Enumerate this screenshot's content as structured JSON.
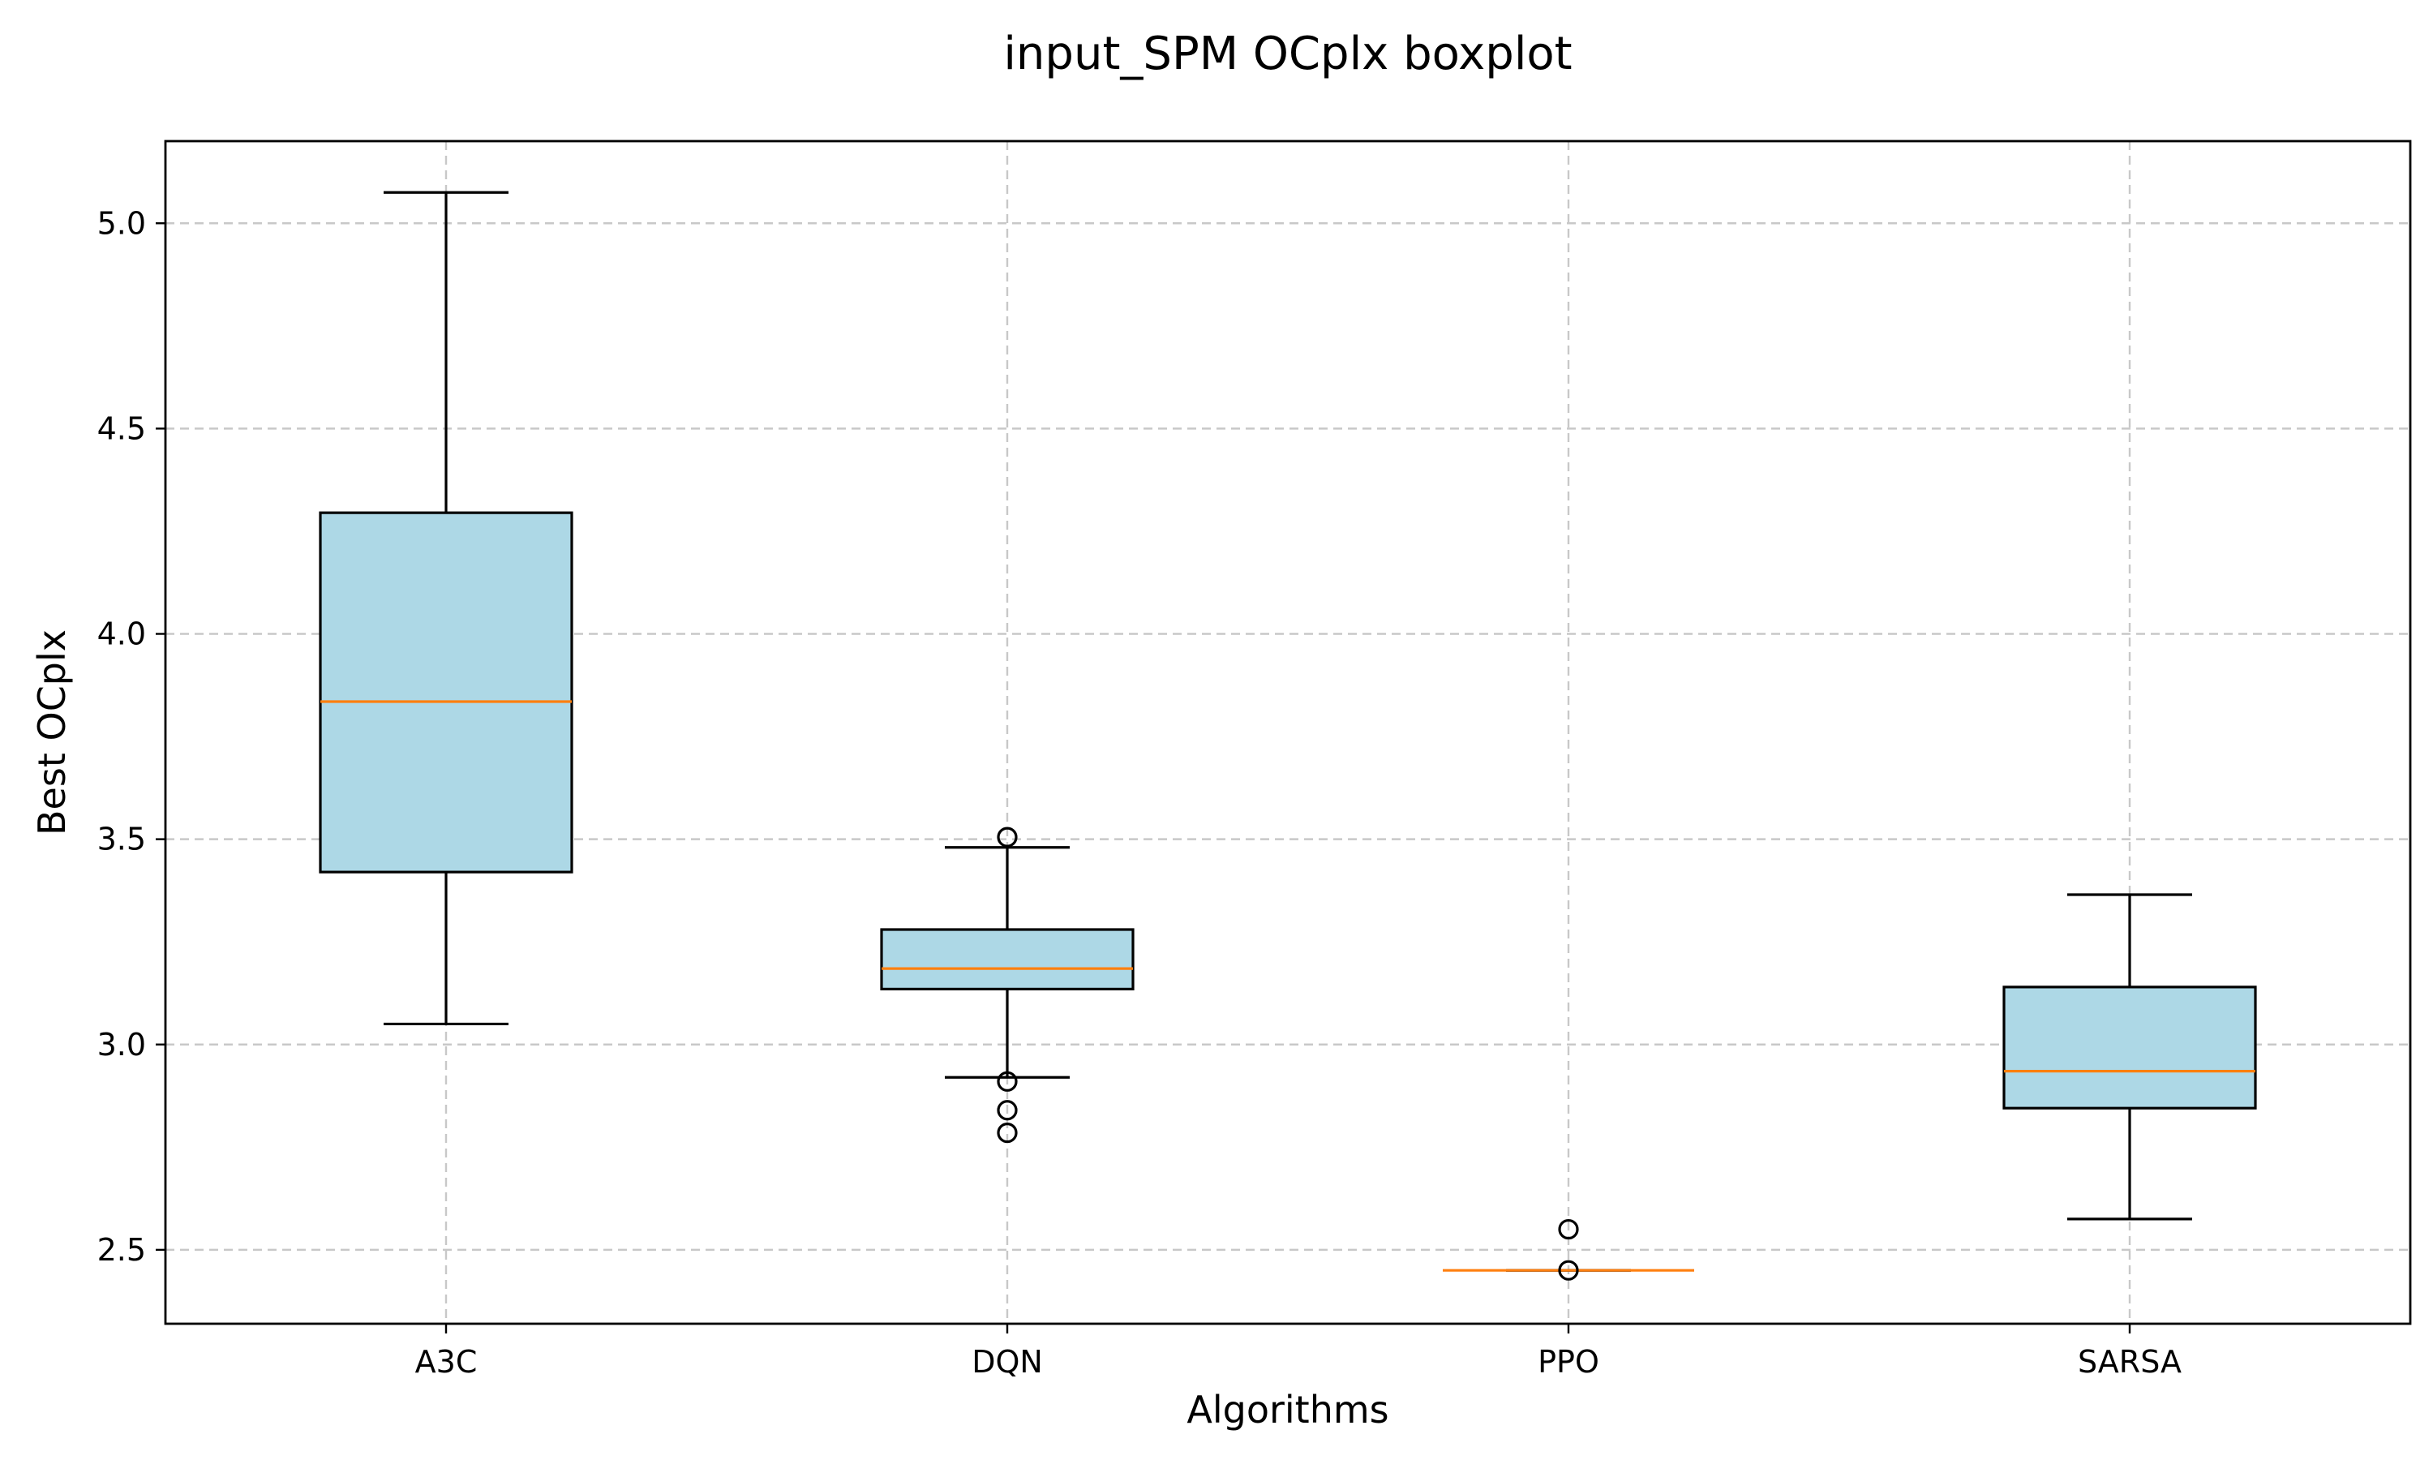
{
  "chart_data": {
    "type": "boxplot",
    "title": "input_SPM OCplx boxplot",
    "xlabel": "Algorithms",
    "ylabel": "Best OCplx",
    "categories": [
      "A3C",
      "DQN",
      "PPO",
      "SARSA"
    ],
    "ylim": [
      2.32,
      5.2
    ],
    "yticks": [
      2.5,
      3.0,
      3.5,
      4.0,
      4.5,
      5.0
    ],
    "ytick_labels": [
      "2.5",
      "3.0",
      "3.5",
      "4.0",
      "4.5",
      "5.0"
    ],
    "grid": true,
    "box_color": "#add8e6",
    "median_color": "#ff7f0e",
    "boxes": [
      {
        "category": "A3C",
        "whislo": 3.05,
        "q1": 3.42,
        "med": 3.835,
        "q3": 4.295,
        "whishi": 5.075,
        "fliers": []
      },
      {
        "category": "DQN",
        "whislo": 2.92,
        "q1": 3.135,
        "med": 3.185,
        "q3": 3.28,
        "whishi": 3.48,
        "fliers": [
          3.505,
          2.91,
          2.84,
          2.785
        ]
      },
      {
        "category": "PPO",
        "whislo": 2.45,
        "q1": 2.45,
        "med": 2.45,
        "q3": 2.45,
        "whishi": 2.45,
        "fliers": [
          2.55,
          2.45
        ]
      },
      {
        "category": "SARSA",
        "whislo": 2.575,
        "q1": 2.845,
        "med": 2.935,
        "q3": 3.14,
        "whishi": 3.365,
        "fliers": []
      }
    ]
  }
}
